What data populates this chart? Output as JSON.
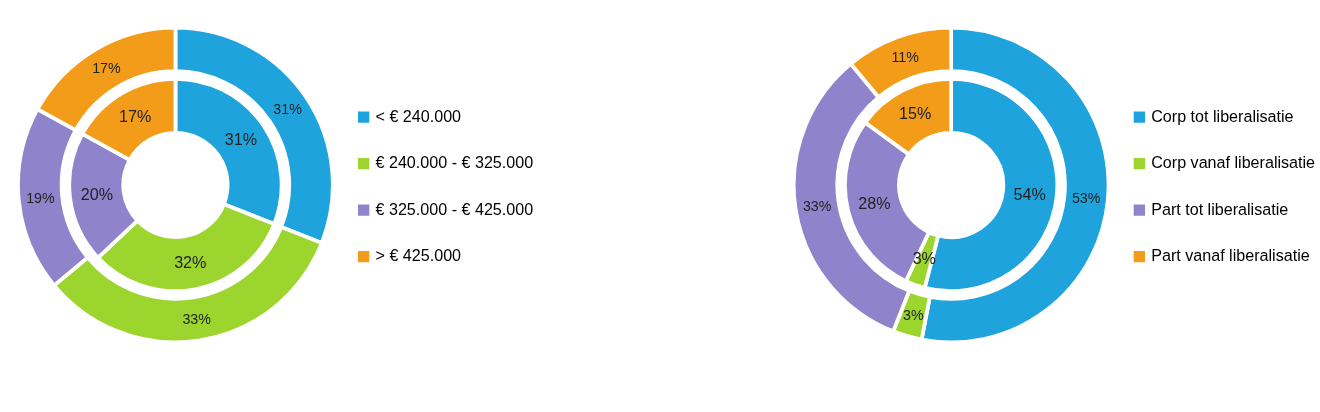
{
  "chart_data": [
    {
      "type": "donut",
      "categories": [
        "< € 240.000",
        "€ 240.000 - € 325.000",
        "€ 325.000 - € 425.000",
        "> € 425.000"
      ],
      "colors": [
        "#1fa3dc",
        "#9bd52e",
        "#8f84cc",
        "#f39c1a"
      ],
      "legend": "right",
      "data_labels": true,
      "series": [
        {
          "values": [
            31,
            32,
            20,
            17
          ],
          "value_labels": [
            "31%",
            "32%",
            "20%",
            "17%"
          ]
        },
        {
          "values": [
            31,
            33,
            19,
            17
          ],
          "value_labels": [
            "31%",
            "33%",
            "19%",
            "17%"
          ]
        }
      ]
    },
    {
      "type": "donut",
      "categories": [
        "Corp tot liberalisatie",
        "Corp vanaf liberalisatie",
        "Part tot liberalisatie",
        "Part vanaf liberalisatie"
      ],
      "colors": [
        "#1fa3dc",
        "#9bd52e",
        "#8f84cc",
        "#f39c1a"
      ],
      "legend": "right",
      "data_labels": true,
      "series": [
        {
          "values": [
            54,
            3,
            28,
            15
          ],
          "value_labels": [
            "54%",
            "3%",
            "28%",
            "15%"
          ]
        },
        {
          "values": [
            53,
            3,
            33,
            11
          ],
          "value_labels": [
            "53%",
            "3%",
            "33%",
            "11%"
          ]
        }
      ]
    }
  ]
}
